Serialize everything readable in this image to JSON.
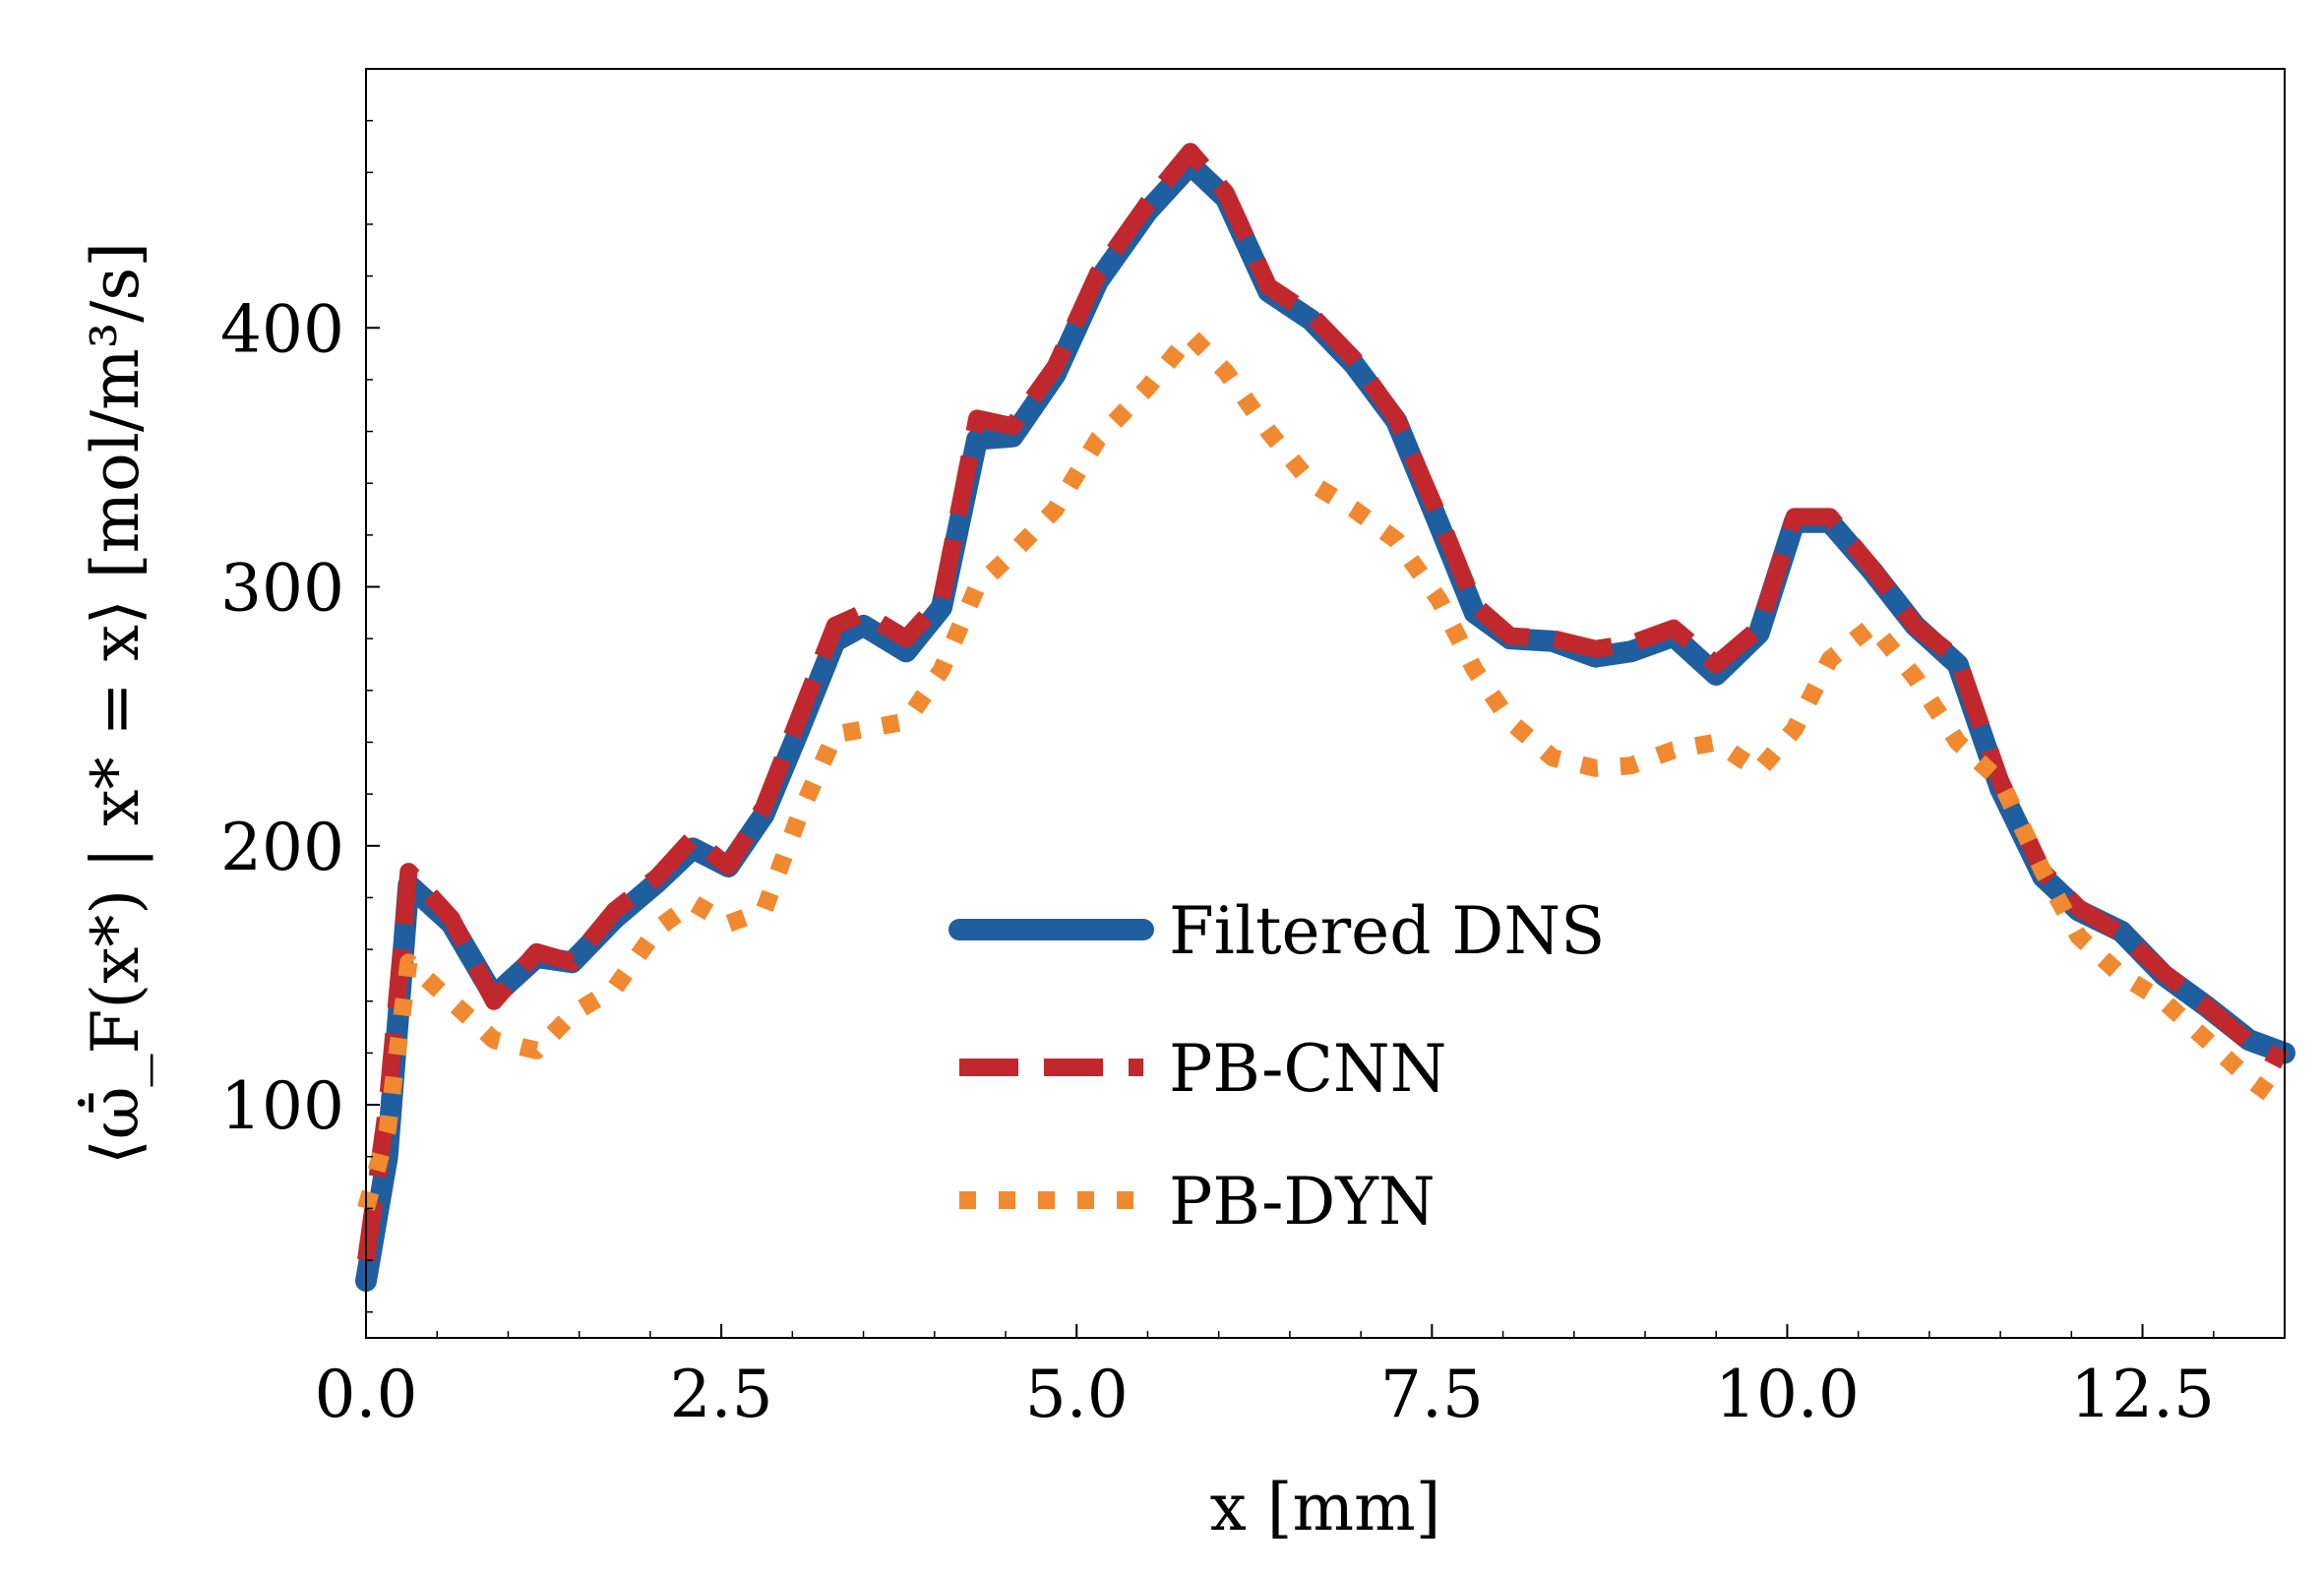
{
  "chart_data": {
    "type": "line",
    "title": "",
    "xlabel": "x [mm]",
    "ylabel": "⟨ω̄̇_F(x*) | x* = x⟩ [mol/m³/s]",
    "xlim": [
      0.0,
      13.5
    ],
    "ylim": [
      10,
      500
    ],
    "xticks": [
      "0.0",
      "2.5",
      "5.0",
      "7.5",
      "10.0",
      "12.5"
    ],
    "yticks": [
      "100",
      "200",
      "300",
      "400"
    ],
    "grid": false,
    "legend_position": "lower-center",
    "x": [
      0.0,
      0.15,
      0.3,
      0.6,
      0.9,
      1.2,
      1.45,
      1.75,
      2.05,
      2.3,
      2.55,
      2.8,
      3.05,
      3.3,
      3.5,
      3.8,
      4.05,
      4.3,
      4.55,
      4.85,
      5.15,
      5.5,
      5.8,
      6.05,
      6.35,
      6.65,
      6.95,
      7.25,
      7.55,
      7.8,
      8.05,
      8.35,
      8.65,
      8.9,
      9.2,
      9.5,
      9.8,
      10.05,
      10.3,
      10.6,
      10.9,
      11.2,
      11.5,
      11.8,
      12.05,
      12.35,
      12.65,
      12.95,
      13.25,
      13.5
    ],
    "series": [
      {
        "name": "Filtered DNS",
        "color": "#1f5fa0",
        "style": "solid",
        "values": [
          32,
          80,
          185,
          170,
          142,
          157,
          155,
          172,
          186,
          199,
          192,
          212,
          245,
          279,
          285,
          275,
          292,
          357,
          358,
          382,
          418,
          445,
          463,
          450,
          414,
          403,
          386,
          364,
          324,
          290,
          280,
          279,
          273,
          275,
          281,
          266,
          282,
          325,
          325,
          306,
          285,
          270,
          222,
          188,
          175,
          167,
          150,
          138,
          125,
          120
        ]
      },
      {
        "name": "PB-CNN",
        "color": "#c0282d",
        "style": "dashed",
        "values": [
          40,
          100,
          190,
          172,
          140,
          159,
          155,
          175,
          188,
          203,
          192,
          215,
          250,
          285,
          290,
          280,
          295,
          365,
          362,
          385,
          421,
          448,
          468,
          452,
          416,
          405,
          388,
          365,
          327,
          293,
          281,
          280,
          276,
          278,
          284,
          270,
          284,
          327,
          327,
          307,
          285,
          272,
          225,
          190,
          176,
          166,
          151,
          138,
          124,
          117
        ]
      },
      {
        "name": "PB-DYN",
        "color": "#f0892f",
        "style": "dotted",
        "values": [
          60,
          90,
          155,
          140,
          125,
          121,
          135,
          145,
          168,
          178,
          170,
          175,
          212,
          243,
          245,
          248,
          268,
          300,
          313,
          330,
          357,
          377,
          397,
          383,
          360,
          340,
          330,
          318,
          295,
          268,
          248,
          234,
          230,
          231,
          237,
          240,
          229,
          245,
          272,
          285,
          265,
          240,
          225,
          190,
          165,
          150,
          140,
          125,
          110,
          100
        ]
      }
    ]
  }
}
